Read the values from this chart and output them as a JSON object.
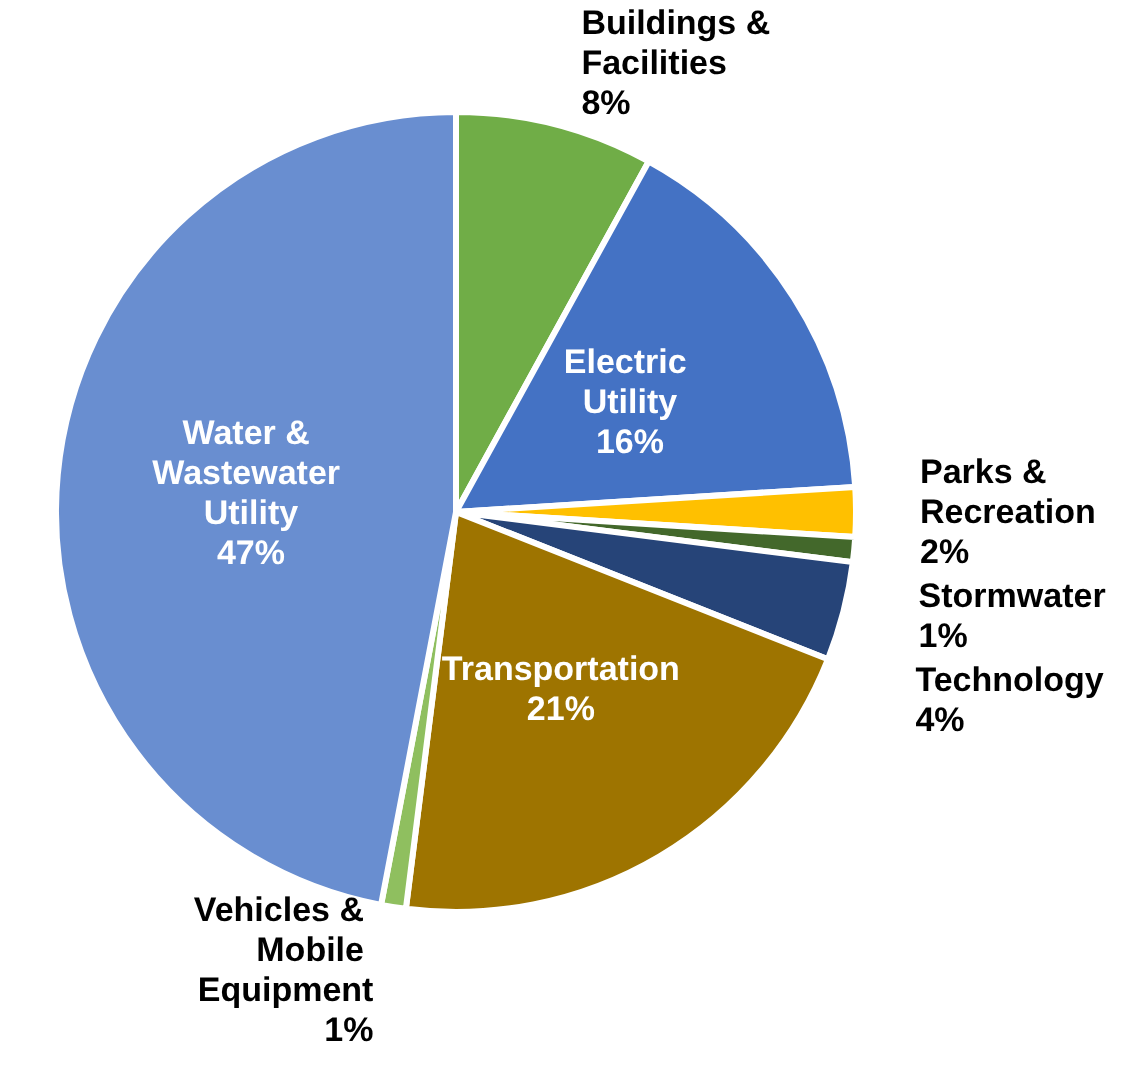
{
  "chart_data": {
    "type": "pie",
    "categories": [
      "Buildings & Facilities",
      "Electric Utility",
      "Parks & Recreation",
      "Stormwater",
      "Technology",
      "Transportation",
      "Vehicles & Mobile Equipment",
      "Water & Wastewater Utility"
    ],
    "values": [
      8,
      16,
      2,
      1,
      4,
      21,
      1,
      47
    ],
    "colors": [
      "#70ad47",
      "#4472c4",
      "#ffc000",
      "#43682b",
      "#264478",
      "#9e7400",
      "#8fbf5f",
      "#698ed0"
    ],
    "value_labels": [
      "8%",
      "16%",
      "2%",
      "1%",
      "4%",
      "21%",
      "1%",
      "47%"
    ]
  }
}
